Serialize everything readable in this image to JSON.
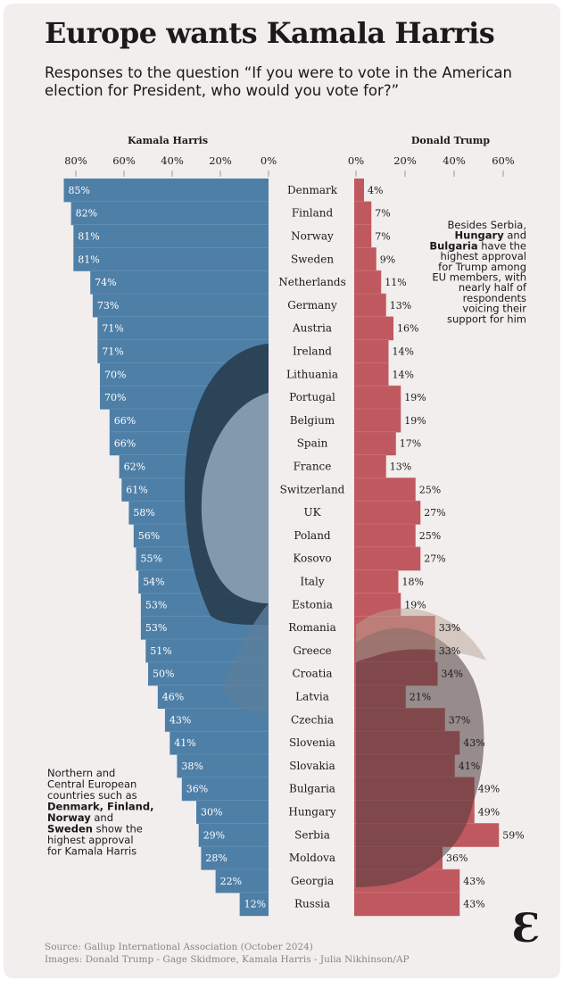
{
  "header": {
    "title": "Europe wants Kamala Harris",
    "subtitle": "Responses to the question “If you were to vote in the American election for President, who would you vote for?”"
  },
  "colors": {
    "harris": "#4e7fa7",
    "trump": "#c0595f",
    "background": "#f1eeed",
    "text": "#1a1a1a"
  },
  "chart_data": {
    "type": "bar",
    "orientation": "horizontal-diverging",
    "title": "Europe wants Kamala Harris",
    "categories": [
      "Denmark",
      "Finland",
      "Norway",
      "Sweden",
      "Netherlands",
      "Germany",
      "Austria",
      "Ireland",
      "Lithuania",
      "Portugal",
      "Belgium",
      "Spain",
      "France",
      "Switzerland",
      "UK",
      "Poland",
      "Kosovo",
      "Italy",
      "Estonia",
      "Romania",
      "Greece",
      "Croatia",
      "Latvia",
      "Czechia",
      "Slovenia",
      "Slovakia",
      "Bulgaria",
      "Hungary",
      "Serbia",
      "Moldova",
      "Georgia",
      "Russia"
    ],
    "series": [
      {
        "name": "Kamala Harris",
        "values": [
          85,
          82,
          81,
          81,
          74,
          73,
          71,
          71,
          70,
          70,
          66,
          66,
          62,
          61,
          58,
          56,
          55,
          54,
          53,
          53,
          51,
          50,
          46,
          43,
          41,
          38,
          36,
          30,
          29,
          28,
          22,
          12
        ]
      },
      {
        "name": "Donald Trump",
        "values": [
          4,
          7,
          7,
          9,
          11,
          13,
          16,
          14,
          14,
          19,
          19,
          17,
          13,
          25,
          27,
          25,
          27,
          18,
          19,
          33,
          33,
          34,
          21,
          37,
          43,
          41,
          49,
          49,
          59,
          36,
          43,
          43
        ]
      }
    ],
    "harris_axis": {
      "label": "Kamala Harris",
      "ticks": [
        "80%",
        "60%",
        "40%",
        "20%",
        "0%"
      ],
      "tick_values": [
        80,
        60,
        40,
        20,
        0
      ]
    },
    "trump_axis": {
      "label": "Donald Trump",
      "ticks": [
        "0%",
        "20%",
        "40%",
        "60%"
      ],
      "tick_values": [
        0,
        20,
        40,
        60
      ]
    },
    "xlim": [
      0,
      85
    ],
    "value_suffix": "%"
  },
  "notes": {
    "harris_lines": [
      [
        {
          "t": "Northern and",
          "b": false
        }
      ],
      [
        {
          "t": "Central European",
          "b": false
        }
      ],
      [
        {
          "t": "countries such as",
          "b": false
        }
      ],
      [
        {
          "t": "Denmark, Finland,",
          "b": true
        }
      ],
      [
        {
          "t": "Norway",
          "b": true
        },
        {
          "t": " and",
          "b": false
        }
      ],
      [
        {
          "t": "Sweden",
          "b": true
        },
        {
          "t": " show the",
          "b": false
        }
      ],
      [
        {
          "t": "highest approval",
          "b": false
        }
      ],
      [
        {
          "t": "for Kamala Harris",
          "b": false
        }
      ]
    ],
    "trump_lines": [
      [
        {
          "t": "Besides Serbia,",
          "b": false
        }
      ],
      [
        {
          "t": "Hungary",
          "b": true
        },
        {
          "t": " and",
          "b": false
        }
      ],
      [
        {
          "t": "Bulgaria",
          "b": true
        },
        {
          "t": " have the",
          "b": false
        }
      ],
      [
        {
          "t": "highest approval",
          "b": false
        }
      ],
      [
        {
          "t": "for Trump among",
          "b": false
        }
      ],
      [
        {
          "t": "EU members, with",
          "b": false
        }
      ],
      [
        {
          "t": "nearly half of",
          "b": false
        }
      ],
      [
        {
          "t": "respondents",
          "b": false
        }
      ],
      [
        {
          "t": "voicing their",
          "b": false
        }
      ],
      [
        {
          "t": "support for him",
          "b": false
        }
      ]
    ]
  },
  "footer": {
    "source": "Source: Gallup International Association (October 2024)",
    "images": "Images: Donald Trump - Gage Skidmore, Kamala Harris - Julia Nikhinson/AP",
    "logo": "Ɛ"
  }
}
